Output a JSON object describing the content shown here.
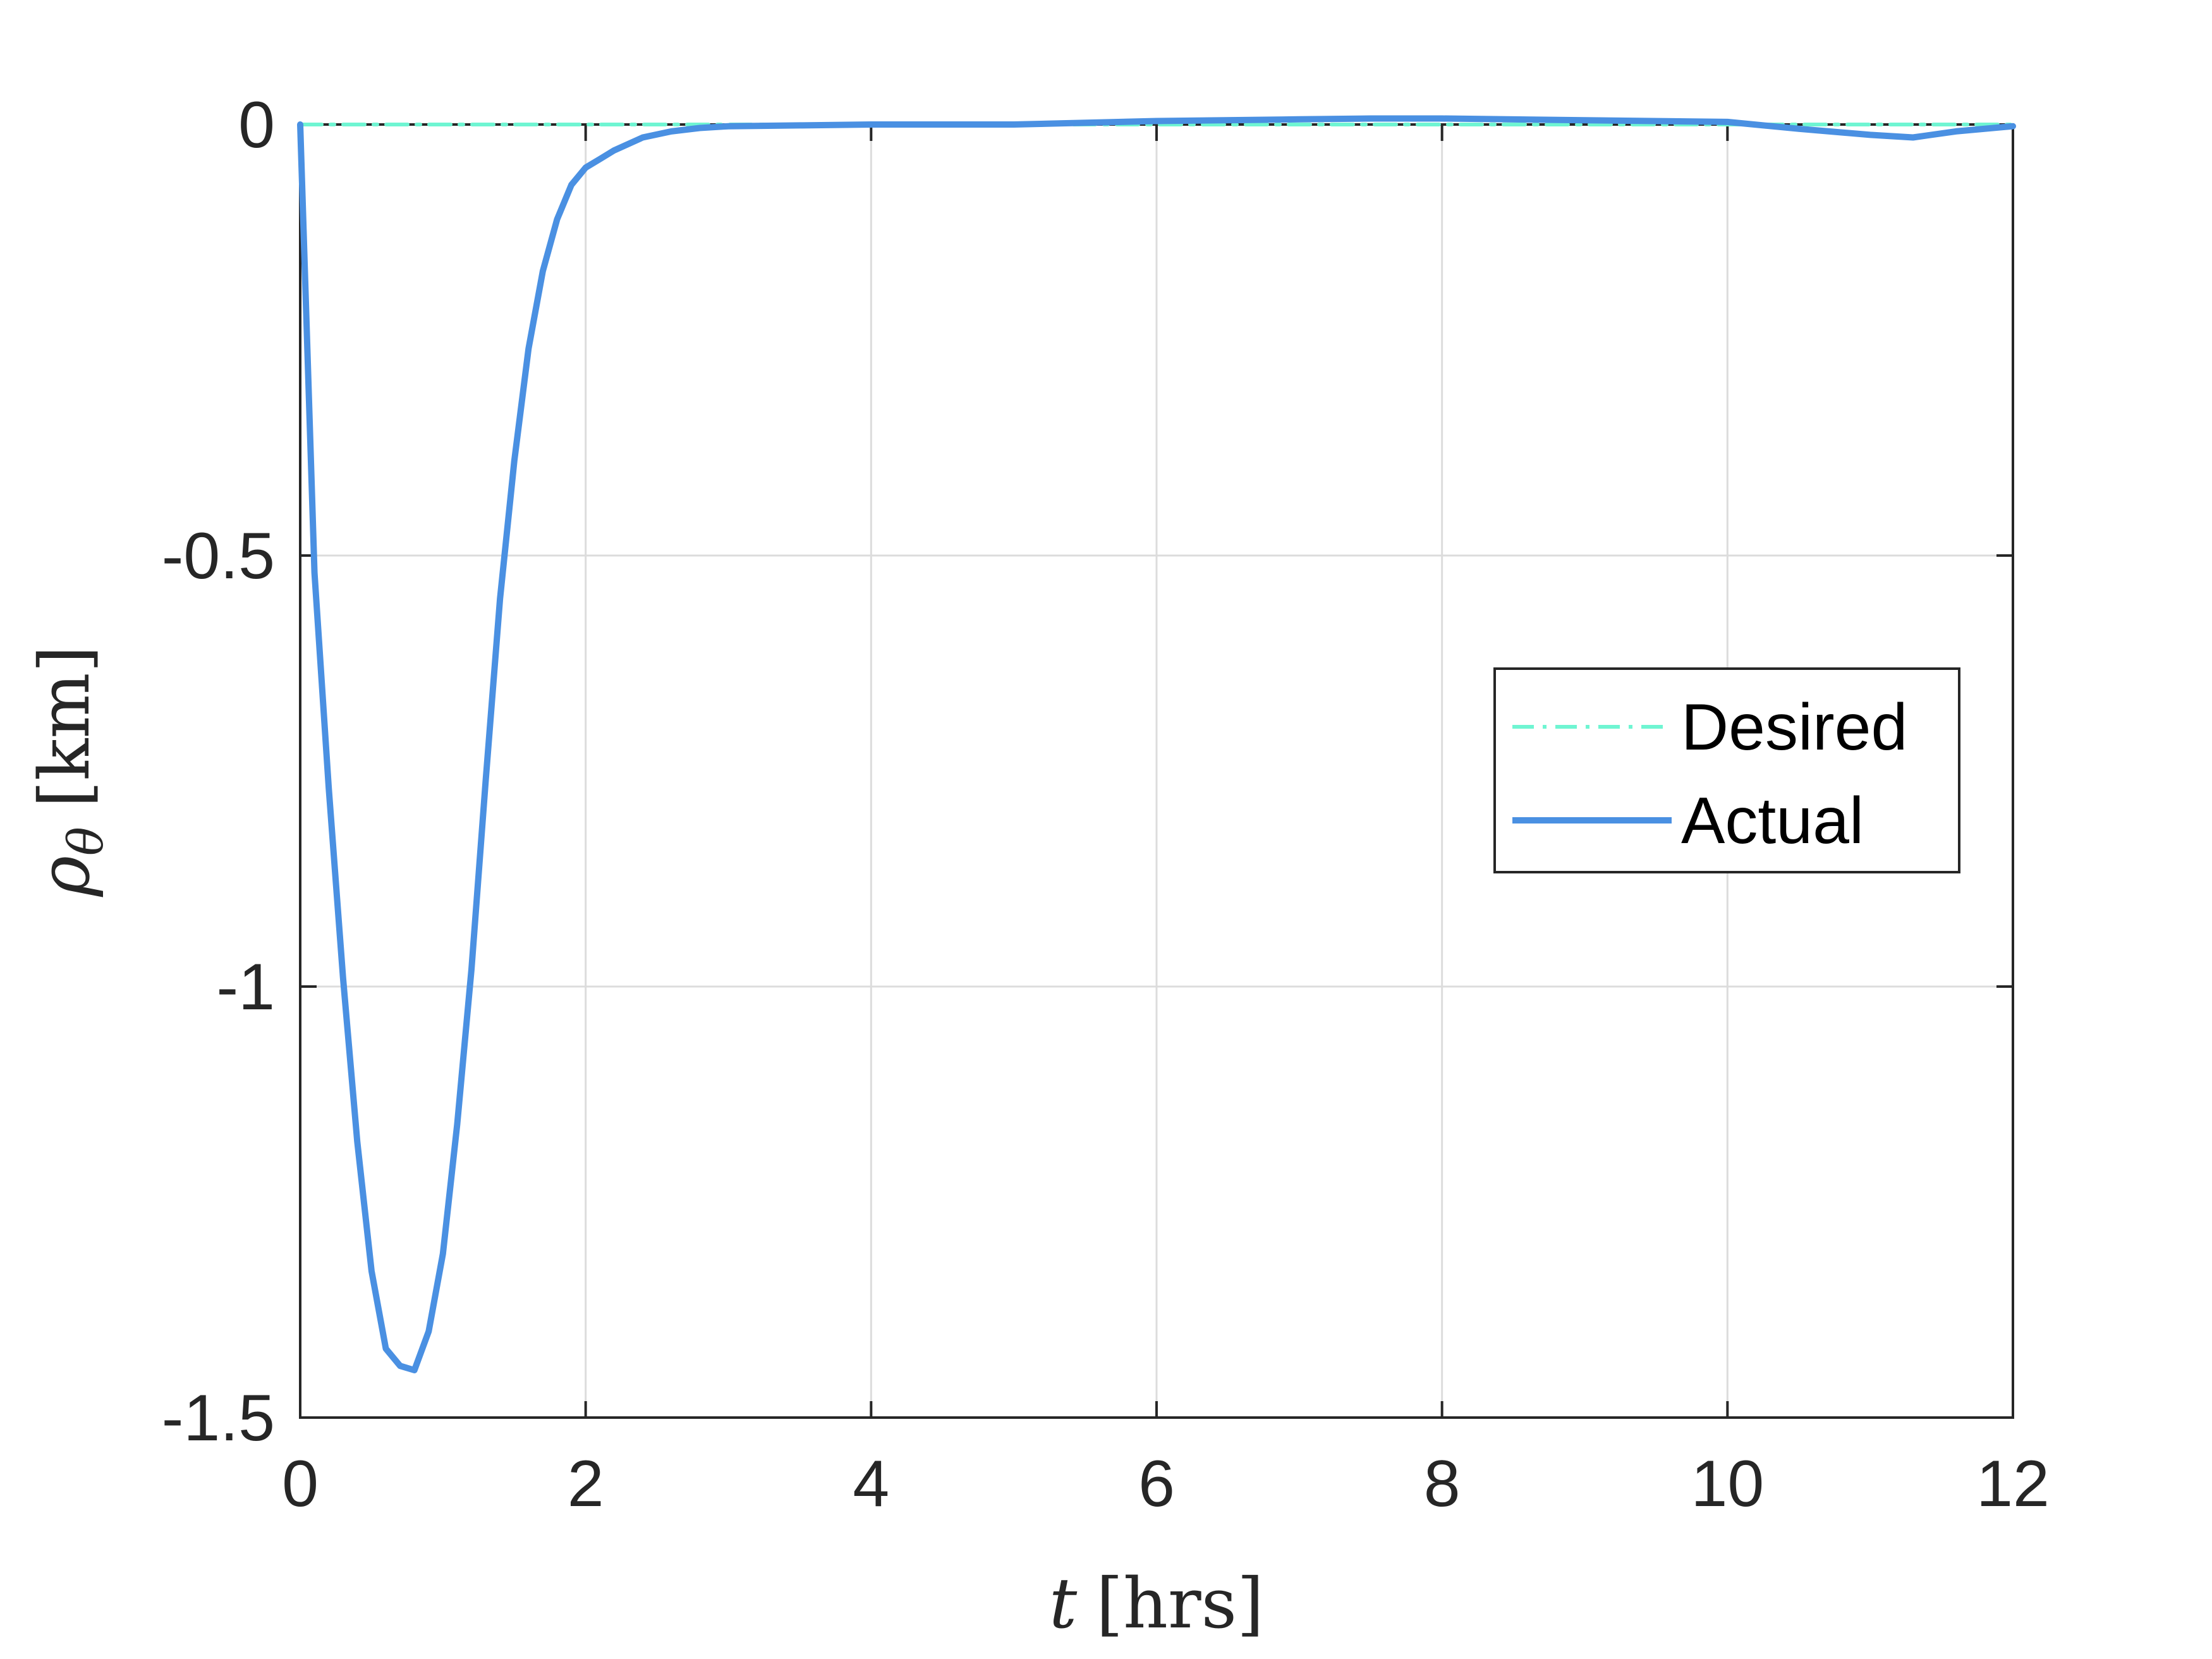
{
  "chart_data": {
    "type": "line",
    "xlabel_var": "t",
    "xlabel_unit": "[hrs]",
    "ylabel_var": "ρ",
    "ylabel_sub": "θ",
    "ylabel_unit": "[km]",
    "xlim": [
      0,
      12
    ],
    "ylim": [
      -1.5,
      0
    ],
    "xticks": [
      0,
      2,
      4,
      6,
      8,
      10,
      12
    ],
    "yticks": [
      0,
      -0.5,
      -1,
      -1.5
    ],
    "xtick_labels": [
      "0",
      "2",
      "4",
      "6",
      "8",
      "10",
      "12"
    ],
    "ytick_labels": [
      "0",
      "-0.5",
      "-1",
      "-1.5"
    ],
    "grid": true,
    "legend_position": "center-right",
    "series": [
      {
        "name": "Desired",
        "color": "#6ff5d2",
        "style": "dash-dot",
        "x": [
          0,
          0.5,
          1,
          1.5,
          2,
          2.5,
          3,
          4,
          5,
          6,
          7,
          8,
          9,
          10,
          11,
          12
        ],
        "y": [
          0,
          0,
          0,
          0,
          0,
          0,
          0,
          0,
          0,
          0,
          0,
          0,
          0,
          0,
          0,
          0
        ]
      },
      {
        "name": "Actual",
        "color": "#4a90e2",
        "style": "solid",
        "x": [
          0,
          0.1,
          0.2,
          0.3,
          0.4,
          0.5,
          0.6,
          0.7,
          0.8,
          0.9,
          1.0,
          1.1,
          1.2,
          1.3,
          1.4,
          1.5,
          1.6,
          1.7,
          1.8,
          1.9,
          2.0,
          2.1,
          2.2,
          2.4,
          2.6,
          2.8,
          3.0,
          3.5,
          4,
          5,
          6,
          7,
          7.5,
          8,
          9,
          10,
          10.5,
          11,
          11.3,
          11.6,
          12
        ],
        "y": [
          0,
          -0.52,
          -0.77,
          -0.99,
          -1.18,
          -1.33,
          -1.42,
          -1.44,
          -1.445,
          -1.4,
          -1.31,
          -1.16,
          -0.98,
          -0.76,
          -0.55,
          -0.39,
          -0.26,
          -0.17,
          -0.11,
          -0.07,
          -0.05,
          -0.04,
          -0.03,
          -0.015,
          -0.008,
          -0.004,
          -0.002,
          -0.001,
          0,
          0,
          0.004,
          0.006,
          0.007,
          0.007,
          0.005,
          0.003,
          -0.005,
          -0.012,
          -0.015,
          -0.008,
          -0.002
        ]
      }
    ]
  }
}
